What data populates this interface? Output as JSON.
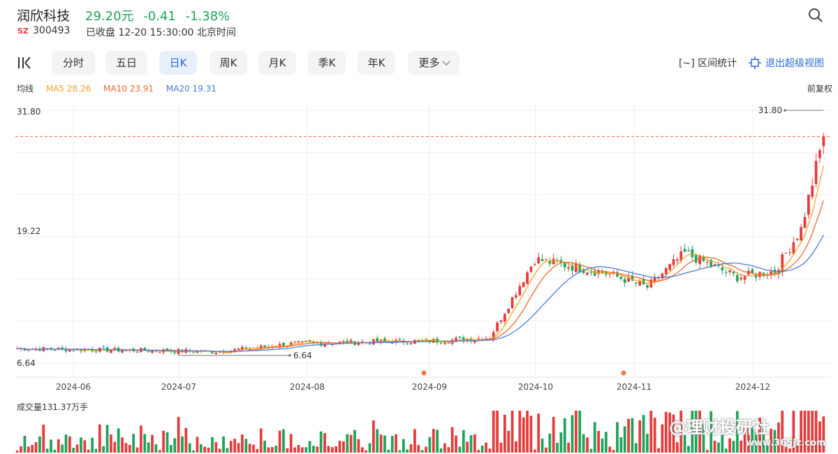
{
  "header": {
    "name": "润欣科技",
    "price": "29.20元",
    "change": "-0.41",
    "change_pct": "-1.38%",
    "market": "SZ",
    "code": "300493",
    "status": "已收盘 12-20 15:30:00 北京时间"
  },
  "tabs": [
    {
      "label": "分时",
      "active": false
    },
    {
      "label": "五日",
      "active": false
    },
    {
      "label": "日K",
      "active": true
    },
    {
      "label": "周K",
      "active": false
    },
    {
      "label": "月K",
      "active": false
    },
    {
      "label": "季K",
      "active": false
    },
    {
      "label": "年K",
      "active": false
    },
    {
      "label": "更多",
      "active": false
    }
  ],
  "toolbar": {
    "range_stats": "[~] 区间统计",
    "exit_super": "退出超级视图"
  },
  "ma_legend": {
    "label": "均线",
    "ma5": "MA5 28.26",
    "ma10": "MA10 23.91",
    "ma20": "MA20 19.31",
    "adjust": "前复权"
  },
  "colors": {
    "up": "#e63b3b",
    "down": "#1fa35a",
    "ma5": "#f2a32a",
    "ma10": "#ec6a2c",
    "ma20": "#4a7bd8",
    "accent": "#2f6bdc"
  },
  "chart_data": {
    "type": "candlestick",
    "y_ticks": [
      "31.80",
      "19.22",
      "6.64"
    ],
    "ylim": [
      6.64,
      31.8
    ],
    "last_price_line": 29.2,
    "max_marker": "31.80",
    "min_marker": "6.64",
    "x_labels": [
      "2024-06",
      "2024-07",
      "2024-08",
      "2024-09",
      "2024-10",
      "2024-11",
      "2024-12"
    ],
    "volume_label": "成交量131.37万手",
    "phases": [
      {
        "n": 55,
        "start": 8.1,
        "end": 7.8
      },
      {
        "n": 20,
        "start": 7.8,
        "end": 8.6
      },
      {
        "n": 40,
        "start": 8.6,
        "end": 8.9
      },
      {
        "n": 12,
        "start": 8.9,
        "end": 9.2
      },
      {
        "n": 12,
        "start": 9.2,
        "end": 17.0
      },
      {
        "n": 20,
        "start": 17.0,
        "end": 15.5
      },
      {
        "n": 10,
        "start": 15.5,
        "end": 14.2
      },
      {
        "n": 10,
        "start": 14.2,
        "end": 17.6
      },
      {
        "n": 14,
        "start": 17.6,
        "end": 15.2
      },
      {
        "n": 10,
        "start": 15.2,
        "end": 15.8
      },
      {
        "n": 7,
        "start": 15.8,
        "end": 20.0
      },
      {
        "n": 6,
        "start": 20.0,
        "end": 29.2
      }
    ]
  },
  "watermark": {
    "text": "@理财投研社",
    "site": "www.365jz.com"
  }
}
